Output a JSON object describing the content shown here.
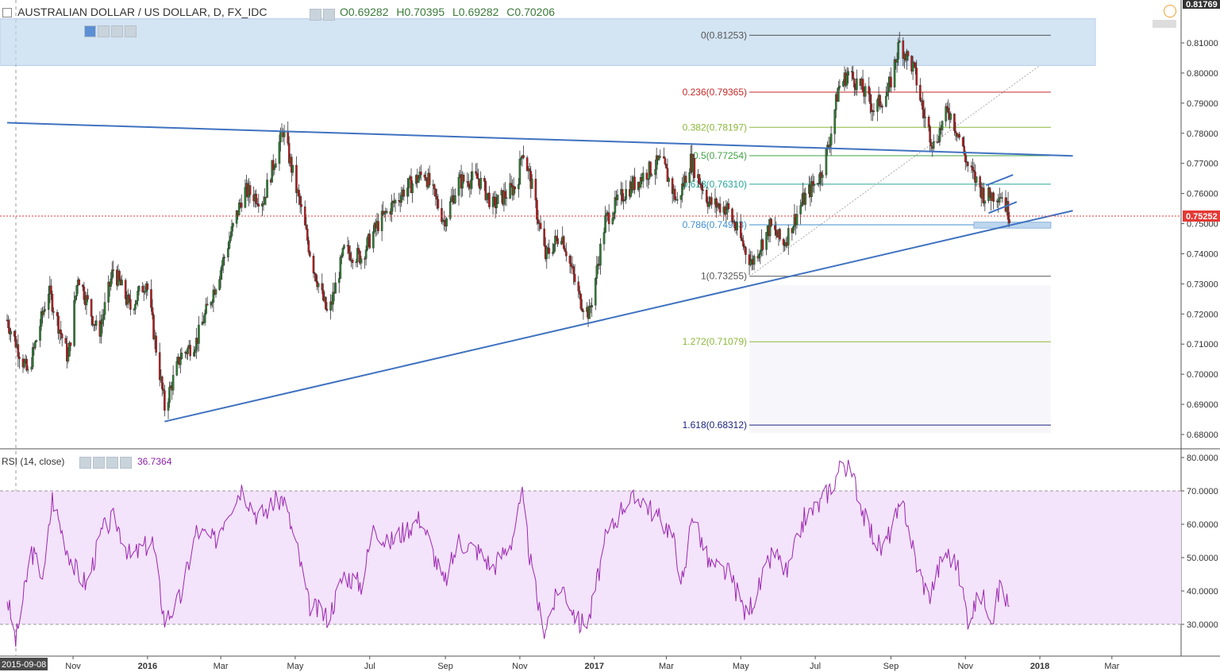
{
  "symbol": {
    "title": "AUSTRALIAN DOLLAR / US DOLLAR, D, FX_IDC",
    "open": "O0.69282",
    "high": "H0.70395",
    "low": "L0.69282",
    "close": "C0.70206"
  },
  "indicator": {
    "label": "RSI (14, close)",
    "value": "36.7364"
  },
  "current_price": "0.75252",
  "top_price": "0.81769",
  "colors": {
    "up": "#2e7d32",
    "down": "#b71c1c",
    "trend": "#3f72c0",
    "rsi": "#9c27b0",
    "rsi_band": "#f3e3fb",
    "fib_zone": "#bcd6ee"
  },
  "chart_data": [
    {
      "type": "candlestick",
      "title": "AUSTRALIAN DOLLAR / US DOLLAR, D, FX_IDC",
      "x_ticks": [
        "2015-09-08",
        "Nov",
        "2016",
        "Mar",
        "May",
        "Jul",
        "Sep",
        "Nov",
        "2017",
        "Mar",
        "May",
        "Jul",
        "Sep",
        "Nov",
        "2018",
        "Mar"
      ],
      "y_ticks": [
        "0.81000",
        "0.80000",
        "0.79000",
        "0.78000",
        "0.77000",
        "0.76000",
        "0.75000",
        "0.74000",
        "0.73000",
        "0.72000",
        "0.71000",
        "0.70000",
        "0.69000",
        "0.68000"
      ],
      "ylim": [
        0.677,
        0.8175
      ],
      "price_path": [
        [
          "2015-09-08",
          0.718
        ],
        [
          "2015-09-25",
          0.7
        ],
        [
          "2015-10-12",
          0.728
        ],
        [
          "2015-10-28",
          0.705
        ],
        [
          "2015-11-05",
          0.733
        ],
        [
          "2015-11-22",
          0.713
        ],
        [
          "2015-12-04",
          0.735
        ],
        [
          "2015-12-18",
          0.722
        ],
        [
          "2015-12-31",
          0.731
        ],
        [
          "2016-01-15",
          0.689
        ],
        [
          "2016-01-28",
          0.706
        ],
        [
          "2016-02-10",
          0.711
        ],
        [
          "2016-03-01",
          0.735
        ],
        [
          "2016-03-20",
          0.761
        ],
        [
          "2016-04-05",
          0.758
        ],
        [
          "2016-04-21",
          0.781
        ],
        [
          "2016-05-05",
          0.756
        ],
        [
          "2016-05-15",
          0.737
        ],
        [
          "2016-05-28",
          0.719
        ],
        [
          "2016-06-10",
          0.741
        ],
        [
          "2016-06-24",
          0.739
        ],
        [
          "2016-07-08",
          0.75
        ],
        [
          "2016-07-29",
          0.761
        ],
        [
          "2016-08-15",
          0.767
        ],
        [
          "2016-08-31",
          0.751
        ],
        [
          "2016-09-12",
          0.764
        ],
        [
          "2016-09-28",
          0.765
        ],
        [
          "2016-10-10",
          0.756
        ],
        [
          "2016-10-30",
          0.763
        ],
        [
          "2016-11-03",
          0.775
        ],
        [
          "2016-11-10",
          0.764
        ],
        [
          "2016-11-22",
          0.739
        ],
        [
          "2016-12-05",
          0.747
        ],
        [
          "2016-12-20",
          0.725
        ],
        [
          "2016-12-28",
          0.72
        ],
        [
          "2017-01-10",
          0.751
        ],
        [
          "2017-01-25",
          0.76
        ],
        [
          "2017-02-10",
          0.766
        ],
        [
          "2017-02-25",
          0.771
        ],
        [
          "2017-03-10",
          0.757
        ],
        [
          "2017-03-21",
          0.771
        ],
        [
          "2017-04-05",
          0.757
        ],
        [
          "2017-04-20",
          0.755
        ],
        [
          "2017-05-05",
          0.741
        ],
        [
          "2017-05-10",
          0.737
        ],
        [
          "2017-05-25",
          0.749
        ],
        [
          "2017-06-05",
          0.743
        ],
        [
          "2017-06-20",
          0.757
        ],
        [
          "2017-07-05",
          0.766
        ],
        [
          "2017-07-12",
          0.776
        ],
        [
          "2017-07-20",
          0.795
        ],
        [
          "2017-07-28",
          0.8
        ],
        [
          "2017-08-08",
          0.795
        ],
        [
          "2017-08-18",
          0.788
        ],
        [
          "2017-08-30",
          0.794
        ],
        [
          "2017-09-08",
          0.81
        ],
        [
          "2017-09-20",
          0.801
        ],
        [
          "2017-09-28",
          0.786
        ],
        [
          "2017-10-06",
          0.776
        ],
        [
          "2017-10-18",
          0.788
        ],
        [
          "2017-10-26",
          0.78
        ],
        [
          "2017-11-03",
          0.769
        ],
        [
          "2017-11-17",
          0.759
        ],
        [
          "2017-11-30",
          0.76
        ],
        [
          "2017-12-07",
          0.753
        ]
      ],
      "fib_levels": [
        {
          "label": "0(0.81253)",
          "value": 0.81253,
          "color": "#555555"
        },
        {
          "label": "0.236(0.79365)",
          "value": 0.79365,
          "color": "#c62828"
        },
        {
          "label": "0.382(0.78197)",
          "value": 0.78197,
          "color": "#8bb83a"
        },
        {
          "label": "0.5(0.77254)",
          "value": 0.77254,
          "color": "#43a047"
        },
        {
          "label": "0.618(0.76310)",
          "value": 0.7631,
          "color": "#26a69a"
        },
        {
          "label": "0.786(0.74963)",
          "value": 0.74963,
          "color": "#3d8fd1"
        },
        {
          "label": "1(0.73255)",
          "value": 0.73255,
          "color": "#555555"
        },
        {
          "label": "1.272(0.71079)",
          "value": 0.71079,
          "color": "#8bb83a"
        },
        {
          "label": "1.618(0.68312)",
          "value": 0.68312,
          "color": "#1a237e"
        }
      ],
      "trend_lines": [
        {
          "from": [
            "2015-09-08",
            0.7835
          ],
          "to": [
            "2018-01-28",
            0.7725
          ]
        },
        {
          "from": [
            "2016-01-15",
            0.6843
          ],
          "to": [
            "2018-01-28",
            0.7543
          ]
        },
        {
          "from": [
            "2017-11-18",
            0.7627
          ],
          "to": [
            "2017-12-10",
            0.7662
          ]
        },
        {
          "from": [
            "2017-11-20",
            0.7535
          ],
          "to": [
            "2017-12-13",
            0.7572
          ]
        }
      ]
    },
    {
      "type": "line",
      "title": "RSI (14, close)",
      "y_ticks": [
        "80.0000",
        "70.0000",
        "60.0000",
        "50.0000",
        "40.0000",
        "30.0000"
      ],
      "ylim": [
        25,
        81
      ],
      "band": [
        30,
        70
      ],
      "series": [
        {
          "name": "RSI (14, close)",
          "points": [
            [
              "2015-09-08",
              38
            ],
            [
              "2015-09-15",
              25
            ],
            [
              "2015-09-28",
              52
            ],
            [
              "2015-10-08",
              44
            ],
            [
              "2015-10-15",
              68
            ],
            [
              "2015-10-25",
              55
            ],
            [
              "2015-11-02",
              47
            ],
            [
              "2015-11-12",
              42
            ],
            [
              "2015-11-25",
              58
            ],
            [
              "2015-12-05",
              62
            ],
            [
              "2015-12-18",
              50
            ],
            [
              "2016-01-05",
              55
            ],
            [
              "2016-01-15",
              31
            ],
            [
              "2016-01-28",
              38
            ],
            [
              "2016-02-10",
              58
            ],
            [
              "2016-02-25",
              55
            ],
            [
              "2016-03-05",
              63
            ],
            [
              "2016-03-18",
              71
            ],
            [
              "2016-04-01",
              62
            ],
            [
              "2016-04-12",
              66
            ],
            [
              "2016-04-21",
              68
            ],
            [
              "2016-05-03",
              52
            ],
            [
              "2016-05-12",
              36
            ],
            [
              "2016-05-28",
              32
            ],
            [
              "2016-06-10",
              45
            ],
            [
              "2016-06-24",
              42
            ],
            [
              "2016-07-05",
              60
            ],
            [
              "2016-07-15",
              54
            ],
            [
              "2016-07-29",
              58
            ],
            [
              "2016-08-12",
              62
            ],
            [
              "2016-08-31",
              42
            ],
            [
              "2016-09-12",
              55
            ],
            [
              "2016-09-28",
              52
            ],
            [
              "2016-10-10",
              47
            ],
            [
              "2016-10-25",
              55
            ],
            [
              "2016-11-03",
              68
            ],
            [
              "2016-11-10",
              48
            ],
            [
              "2016-11-20",
              28
            ],
            [
              "2016-12-05",
              42
            ],
            [
              "2016-12-20",
              30
            ],
            [
              "2016-12-28",
              32
            ],
            [
              "2017-01-10",
              55
            ],
            [
              "2017-01-25",
              66
            ],
            [
              "2017-02-08",
              68
            ],
            [
              "2017-02-22",
              62
            ],
            [
              "2017-03-05",
              58
            ],
            [
              "2017-03-15",
              42
            ],
            [
              "2017-03-22",
              64
            ],
            [
              "2017-04-05",
              48
            ],
            [
              "2017-04-22",
              45
            ],
            [
              "2017-05-05",
              33
            ],
            [
              "2017-05-15",
              40
            ],
            [
              "2017-05-28",
              52
            ],
            [
              "2017-06-08",
              45
            ],
            [
              "2017-06-22",
              62
            ],
            [
              "2017-07-05",
              66
            ],
            [
              "2017-07-15",
              72
            ],
            [
              "2017-07-24",
              79
            ],
            [
              "2017-08-03",
              72
            ],
            [
              "2017-08-12",
              60
            ],
            [
              "2017-08-25",
              52
            ],
            [
              "2017-09-05",
              62
            ],
            [
              "2017-09-12",
              65
            ],
            [
              "2017-09-22",
              48
            ],
            [
              "2017-10-02",
              38
            ],
            [
              "2017-10-15",
              52
            ],
            [
              "2017-10-25",
              48
            ],
            [
              "2017-11-03",
              32
            ],
            [
              "2017-11-14",
              39
            ],
            [
              "2017-11-24",
              32
            ],
            [
              "2017-11-30",
              43
            ],
            [
              "2017-12-07",
              34
            ]
          ]
        }
      ]
    }
  ]
}
